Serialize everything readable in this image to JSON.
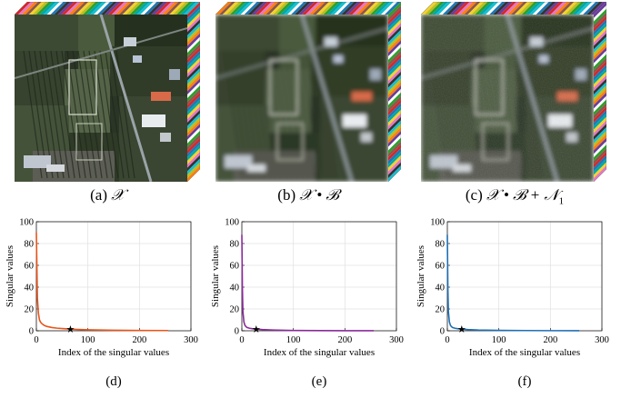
{
  "panels_top": [
    {
      "label": "(a)",
      "math": "𝒳",
      "scene": "sharp"
    },
    {
      "label": "(b)",
      "math": "𝒳 • ℬ",
      "scene": "blur"
    },
    {
      "label": "(c)",
      "math": "𝒳 • ℬ + 𝒩",
      "sub": "1",
      "scene": "blurnoise"
    }
  ],
  "chart_data": [
    {
      "type": "line",
      "caption": "(d)",
      "xlabel": "Index of the singular values",
      "ylabel": "Singular values",
      "xlim": [
        0,
        300
      ],
      "ylim": [
        0,
        100
      ],
      "xticks": [
        0,
        100,
        200,
        300
      ],
      "yticks": [
        0,
        20,
        40,
        60,
        80,
        100
      ],
      "grid": true,
      "color": "#e8551b",
      "marker_index": 66,
      "marker_value": 1.5,
      "x": [
        0,
        2,
        4,
        6,
        8,
        10,
        15,
        20,
        30,
        40,
        50,
        66,
        80,
        100,
        150,
        200,
        256
      ],
      "y": [
        90,
        30,
        16,
        10,
        8,
        6.8,
        5,
        4,
        3,
        2.4,
        2,
        1.5,
        1.2,
        0.9,
        0.5,
        0.3,
        0.2
      ]
    },
    {
      "type": "line",
      "caption": "(e)",
      "xlabel": "Index of the singular values",
      "ylabel": "Singular values",
      "xlim": [
        0,
        300
      ],
      "ylim": [
        0,
        100
      ],
      "xticks": [
        0,
        100,
        200,
        300
      ],
      "yticks": [
        0,
        20,
        40,
        60,
        80,
        100
      ],
      "grid": true,
      "color": "#8a2a9a",
      "marker_index": 28,
      "marker_value": 1.5,
      "x": [
        0,
        1,
        2,
        4,
        6,
        8,
        10,
        15,
        20,
        28,
        40,
        60,
        100,
        150,
        200,
        256
      ],
      "y": [
        88,
        40,
        18,
        8,
        5,
        3.8,
        3,
        2.3,
        1.9,
        1.5,
        1.1,
        0.7,
        0.3,
        0.15,
        0.05,
        0.02
      ]
    },
    {
      "type": "line",
      "caption": "(f)",
      "xlabel": "Index of the singular values",
      "ylabel": "Singular values",
      "xlim": [
        0,
        300
      ],
      "ylim": [
        0,
        100
      ],
      "xticks": [
        0,
        100,
        200,
        300
      ],
      "yticks": [
        0,
        20,
        40,
        60,
        80,
        100
      ],
      "grid": true,
      "color": "#1f6fb5",
      "marker_index": 28,
      "marker_value": 1.5,
      "x": [
        0,
        1,
        2,
        4,
        6,
        8,
        10,
        15,
        20,
        28,
        40,
        60,
        100,
        150,
        200,
        256
      ],
      "y": [
        88,
        40,
        18,
        8,
        5,
        3.8,
        3,
        2.3,
        1.9,
        1.5,
        1.1,
        0.7,
        0.35,
        0.2,
        0.1,
        0.05
      ]
    }
  ]
}
